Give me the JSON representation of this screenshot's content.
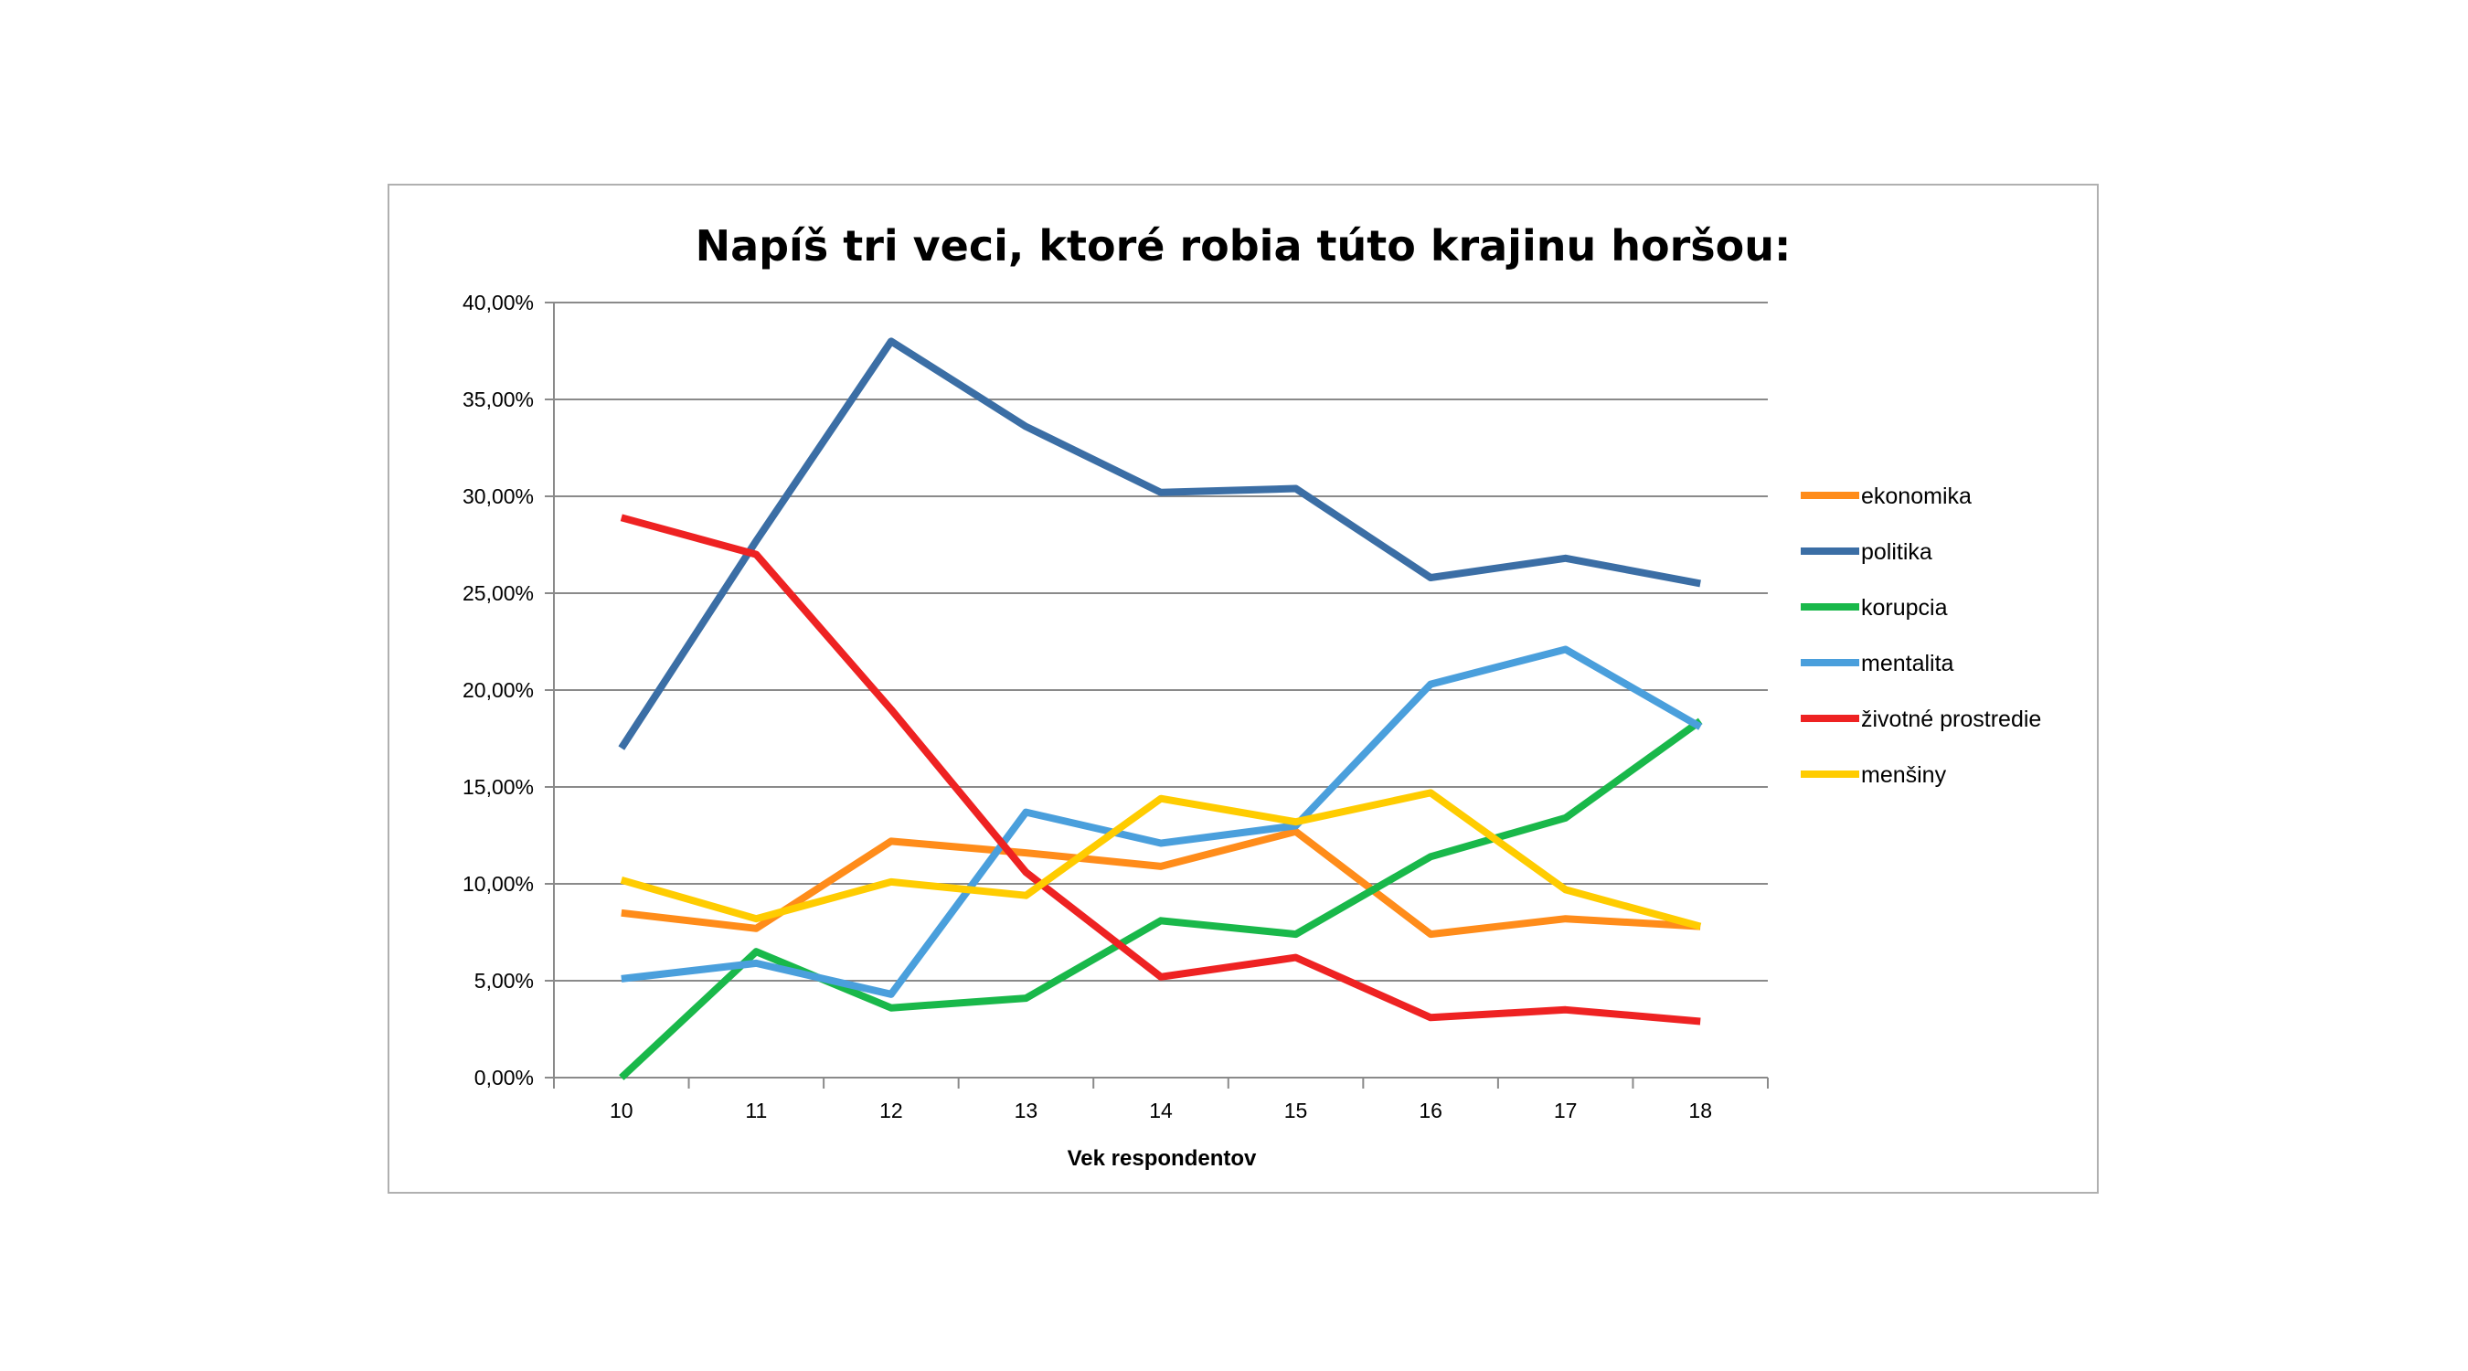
{
  "chart_data": {
    "type": "line",
    "title": "Napíš tri veci, ktoré robia túto krajinu horšou:",
    "xlabel": "Vek respondentov",
    "ylabel": "",
    "categories": [
      "10",
      "11",
      "12",
      "13",
      "14",
      "15",
      "16",
      "17",
      "18"
    ],
    "ylim": [
      0,
      0.4
    ],
    "y_ticks": [
      "0,00%",
      "5,00%",
      "10,00%",
      "15,00%",
      "20,00%",
      "25,00%",
      "30,00%",
      "35,00%",
      "40,00%"
    ],
    "grid": true,
    "legend_position": "right",
    "series": [
      {
        "name": "ekonomika",
        "color": "#ff8c1a",
        "values": [
          0.085,
          0.077,
          0.122,
          0.116,
          0.109,
          0.127,
          0.074,
          0.082,
          0.078
        ]
      },
      {
        "name": "politika",
        "color": "#3b6ea5",
        "values": [
          0.17,
          0.277,
          0.38,
          0.336,
          0.302,
          0.304,
          0.258,
          0.268,
          0.255
        ]
      },
      {
        "name": "korupcia",
        "color": "#19b84a",
        "values": [
          0.0,
          0.065,
          0.036,
          0.041,
          0.081,
          0.074,
          0.114,
          0.134,
          0.184
        ]
      },
      {
        "name": "mentalita",
        "color": "#4a9fdc",
        "values": [
          0.051,
          0.059,
          0.043,
          0.137,
          0.121,
          0.13,
          0.203,
          0.221,
          0.181
        ]
      },
      {
        "name": "životné prostredie",
        "color": "#ee2222",
        "values": [
          0.289,
          0.27,
          0.19,
          0.106,
          0.052,
          0.062,
          0.031,
          0.035,
          0.029
        ]
      },
      {
        "name": "menšiny",
        "color": "#ffcc00",
        "values": [
          0.102,
          0.082,
          0.101,
          0.094,
          0.144,
          0.132,
          0.147,
          0.097,
          0.078
        ]
      }
    ]
  }
}
